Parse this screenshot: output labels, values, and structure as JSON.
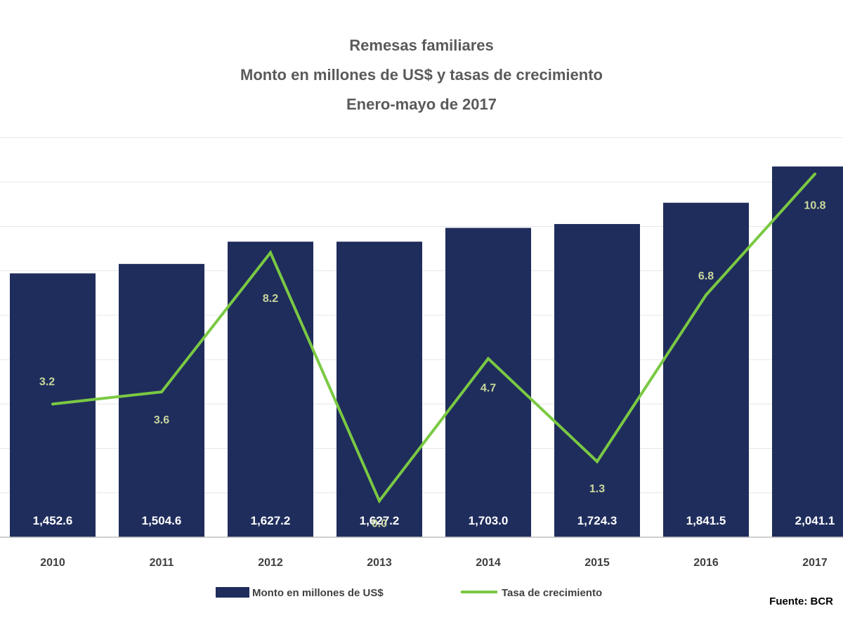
{
  "chart_data": {
    "type": "bar",
    "title": "Remesas familiares",
    "subtitle": "Monto en millones de US$ y tasas de crecimiento",
    "subtitle2": "Enero-mayo de 2017",
    "categories": [
      "2010",
      "2011",
      "2012",
      "2013",
      "2014",
      "2015",
      "2016",
      "2017"
    ],
    "series": [
      {
        "name": "Monto en millones de US$",
        "type": "bar",
        "color": "#1f2d5c",
        "values": [
          1452.6,
          1504.6,
          1627.2,
          1627.2,
          1703.0,
          1724.3,
          1841.5,
          2041.1
        ],
        "labels": [
          "1,452.6",
          "1,504.6",
          "1,627.2",
          "1,627.2",
          "1,703.0",
          "1,724.3",
          "1,841.5",
          "2,041.1"
        ]
      },
      {
        "name": "Tasa de crecimiento",
        "type": "line",
        "color": "#7ac943",
        "values": [
          3.2,
          3.6,
          8.2,
          0.0,
          4.7,
          1.3,
          6.8,
          10.8
        ],
        "labels": [
          "3.2",
          "3.6",
          "8.2",
          "0.0",
          "4.7",
          "1.3",
          "6.8",
          "10.8"
        ]
      }
    ],
    "ylim_bars": [
      0,
      2200
    ],
    "ylim_rate": [
      -1.2,
      12.0
    ],
    "grid": true,
    "legend_position": "bottom",
    "source": "Fuente: BCR"
  }
}
